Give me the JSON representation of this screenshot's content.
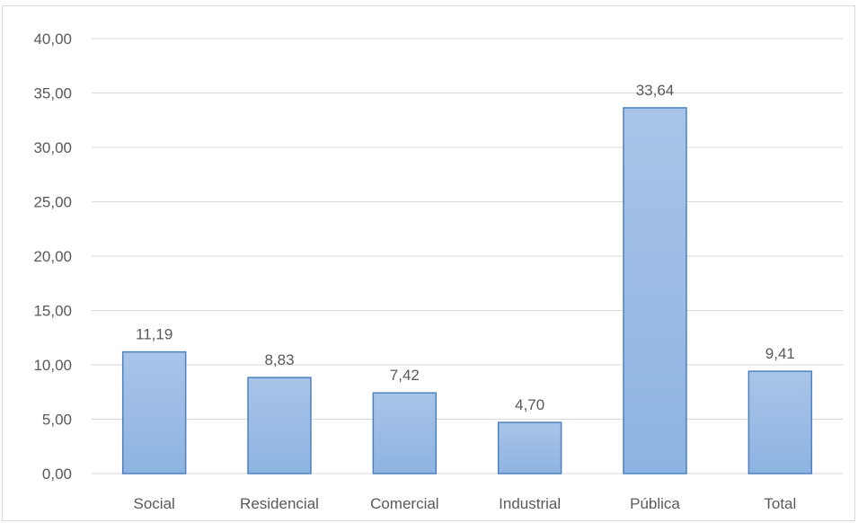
{
  "chart_data": {
    "type": "bar",
    "title": "",
    "xlabel": "",
    "ylabel": "",
    "categories": [
      "Social",
      "Residencial",
      "Comercial",
      "Industrial",
      "Pública",
      "Total"
    ],
    "values": [
      11.19,
      8.83,
      7.42,
      4.7,
      33.64,
      9.41
    ],
    "data_labels": [
      "11,19",
      "8,83",
      "7,42",
      "4,70",
      "33,64",
      "9,41"
    ],
    "ylim": [
      0,
      40
    ],
    "yticks": [
      0,
      5,
      10,
      15,
      20,
      25,
      30,
      35,
      40
    ],
    "ytick_labels": [
      "0,00",
      "5,00",
      "10,00",
      "15,00",
      "20,00",
      "25,00",
      "30,00",
      "35,00",
      "40,00"
    ],
    "grid": true,
    "legend": "none",
    "colors": {
      "bar_fill_top": "#a9c4e8",
      "bar_fill_bottom": "#8db3e2",
      "bar_stroke": "#4f81bd",
      "grid": "#d9d9d9",
      "text": "#595959"
    }
  }
}
